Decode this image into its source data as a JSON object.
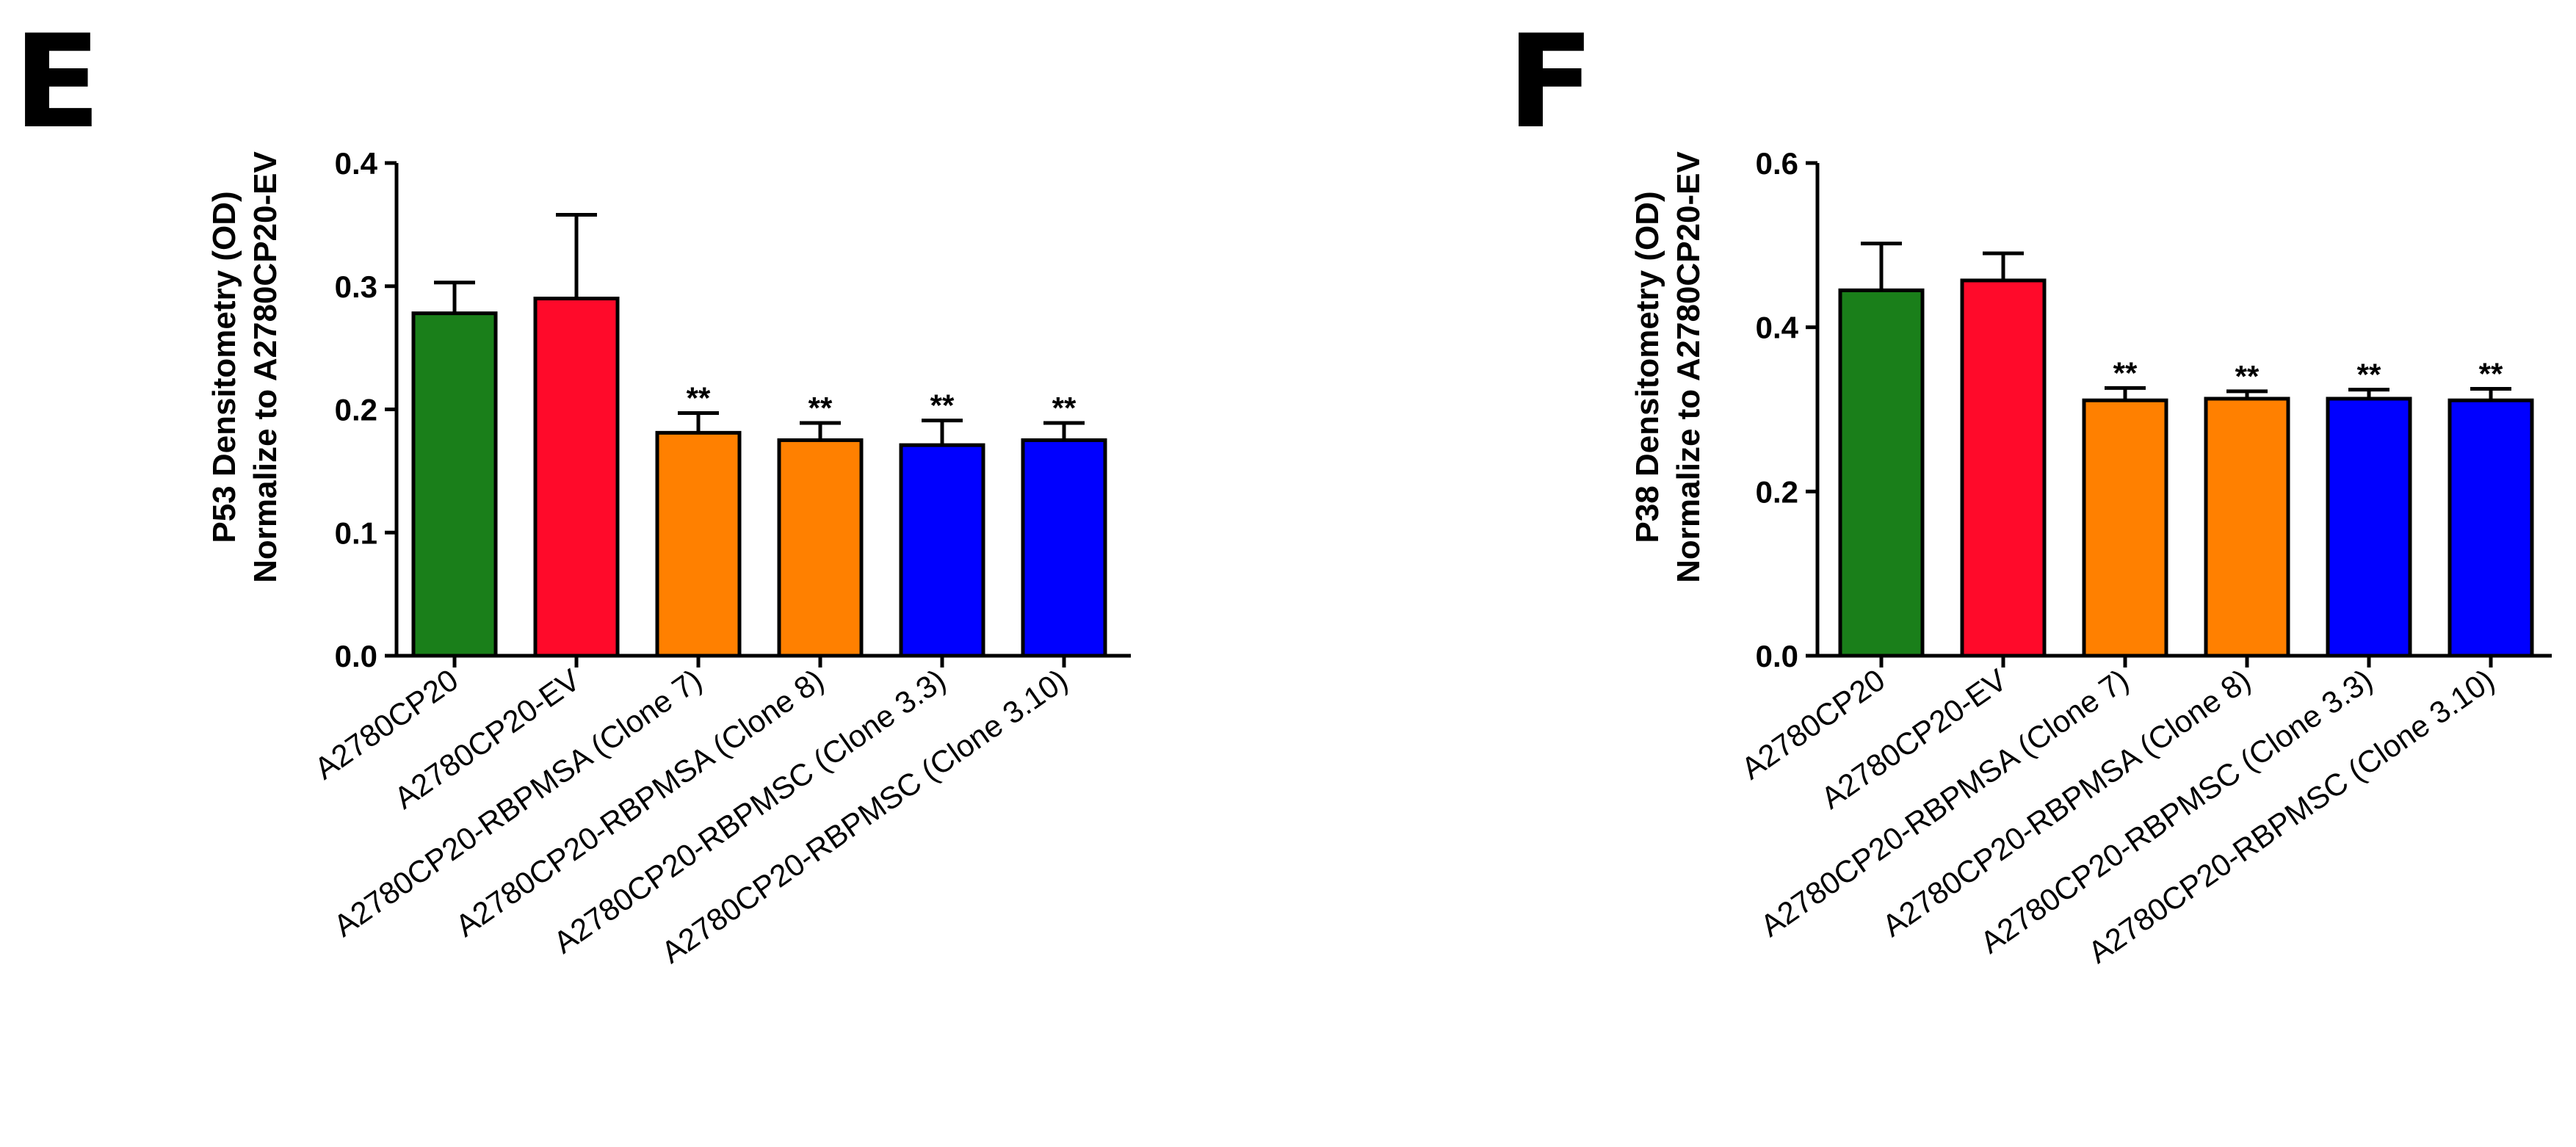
{
  "chart_data": [
    {
      "panel": "E",
      "type": "bar",
      "ylabel": [
        "P53  Densitometry (OD)",
        "Normalize to A2780CP20-EV"
      ],
      "ylim": [
        0,
        0.4
      ],
      "yticks": [
        "0.0",
        "0.1",
        "0.2",
        "0.3",
        "0.4"
      ],
      "categories": [
        "A2780CP20",
        "A2780CP20-EV",
        "A2780CP20-RBPMSA (Clone 7)",
        "A2780CP20-RBPMSA (Clone 8)",
        "A2780CP20-RBPMSC (Clone 3.3)",
        "A2780CP20-RBPMSC (Clone 3.10)"
      ],
      "values": [
        0.278,
        0.29,
        0.181,
        0.175,
        0.171,
        0.175
      ],
      "errors": [
        0.025,
        0.068,
        0.016,
        0.014,
        0.02,
        0.014
      ],
      "colors": [
        "#1a7f1a",
        "#ff0a2a",
        "#ff8000",
        "#ff8000",
        "#0000ff",
        "#0000ff"
      ],
      "significance": [
        "",
        "",
        "**",
        "**",
        "**",
        "**"
      ]
    },
    {
      "panel": "F",
      "type": "bar",
      "ylabel": [
        "P38  Densitometry (OD)",
        "Normalize to A2780CP20-EV"
      ],
      "ylim": [
        0,
        0.6
      ],
      "yticks": [
        "0.0",
        "0.2",
        "0.4",
        "0.6"
      ],
      "categories": [
        "A2780CP20",
        "A2780CP20-EV",
        "A2780CP20-RBPMSA (Clone 7)",
        "A2780CP20-RBPMSA (Clone 8)",
        "A2780CP20-RBPMSC (Clone 3.3)",
        "A2780CP20-RBPMSC (Clone 3.10)"
      ],
      "values": [
        0.445,
        0.457,
        0.311,
        0.313,
        0.313,
        0.311
      ],
      "errors": [
        0.057,
        0.033,
        0.015,
        0.009,
        0.011,
        0.014
      ],
      "colors": [
        "#1a7f1a",
        "#ff0a2a",
        "#ff8000",
        "#ff8000",
        "#0000ff",
        "#0000ff"
      ],
      "significance": [
        "",
        "",
        "**",
        "**",
        "**",
        "**"
      ]
    }
  ]
}
